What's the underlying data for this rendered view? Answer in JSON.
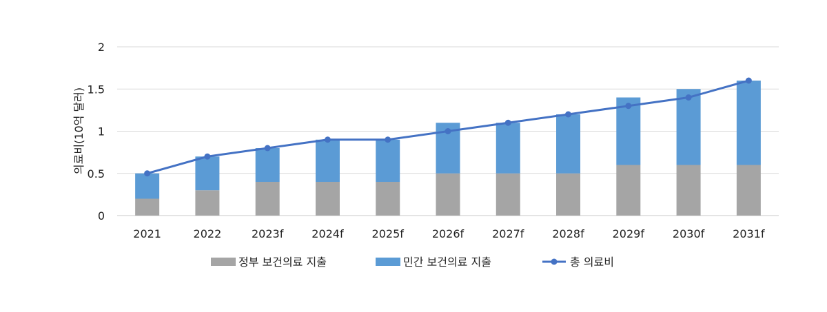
{
  "chart_data": {
    "type": "bar",
    "stacked": true,
    "categories": [
      "2021",
      "2022",
      "2023f",
      "2024f",
      "2025f",
      "2026f",
      "2027f",
      "2028f",
      "2029f",
      "2030f",
      "2031f"
    ],
    "series": [
      {
        "name": "정부 보건의료 지출",
        "kind": "bar",
        "color": "#a5a5a5",
        "values": [
          0.2,
          0.3,
          0.4,
          0.4,
          0.4,
          0.5,
          0.5,
          0.5,
          0.6,
          0.6,
          0.6
        ]
      },
      {
        "name": "민간 보건의료 지출",
        "kind": "bar",
        "color": "#5b9bd5",
        "values": [
          0.3,
          0.4,
          0.4,
          0.5,
          0.5,
          0.6,
          0.6,
          0.7,
          0.8,
          0.9,
          1.0
        ]
      },
      {
        "name": "총 의료비",
        "kind": "line",
        "color": "#4472c4",
        "values": [
          0.5,
          0.7,
          0.8,
          0.9,
          0.9,
          1.0,
          1.1,
          1.2,
          1.3,
          1.4,
          1.6
        ]
      }
    ],
    "ylabel": "의료비(10억 달러)",
    "ylim": [
      0,
      2
    ],
    "yticks": [
      "0",
      "0.5",
      "1",
      "1.5",
      "2"
    ],
    "grid": true,
    "legend_position": "bottom"
  }
}
